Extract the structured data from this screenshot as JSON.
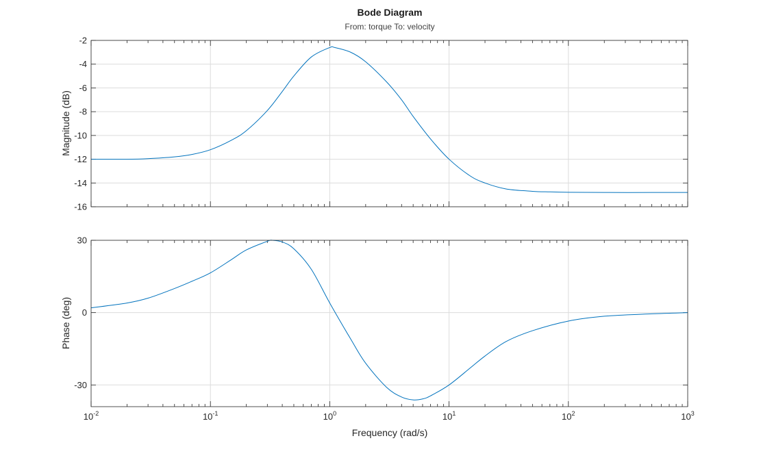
{
  "chart_data": {
    "type": "line",
    "title": "Bode Diagram",
    "subtitle": "From: torque  To: velocity",
    "xlabel": "Frequency (rad/s)",
    "x_scale": "log",
    "xlim": [
      0.01,
      1000
    ],
    "x_ticks": [
      {
        "base": "10",
        "exp": "-2",
        "value": 0.01
      },
      {
        "base": "10",
        "exp": "-1",
        "value": 0.1
      },
      {
        "base": "10",
        "exp": "0",
        "value": 1
      },
      {
        "base": "10",
        "exp": "1",
        "value": 10
      },
      {
        "base": "10",
        "exp": "2",
        "value": 100
      },
      {
        "base": "10",
        "exp": "3",
        "value": 1000
      }
    ],
    "grid": true,
    "line_color": "#0072BD",
    "axes": [
      {
        "name": "magnitude",
        "ylabel": "Magnitude (dB)",
        "ylim": [
          -16,
          -2
        ],
        "y_ticks": [
          -2,
          -4,
          -6,
          -8,
          -10,
          -12,
          -14,
          -16
        ],
        "series": [
          {
            "x": [
              0.01,
              0.02,
              0.03,
              0.05,
              0.07,
              0.1,
              0.15,
              0.2,
              0.3,
              0.4,
              0.5,
              0.7,
              1.0,
              1.1,
              1.5,
              2,
              3,
              4,
              5,
              7,
              10,
              15,
              20,
              30,
              50,
              70,
              100,
              200,
              500,
              1000
            ],
            "y": [
              -12.0,
              -12.0,
              -11.95,
              -11.8,
              -11.6,
              -11.2,
              -10.4,
              -9.6,
              -7.9,
              -6.3,
              -5.0,
              -3.4,
              -2.6,
              -2.6,
              -3.0,
              -3.8,
              -5.5,
              -7.0,
              -8.4,
              -10.3,
              -12.0,
              -13.4,
              -14.0,
              -14.5,
              -14.7,
              -14.75,
              -14.78,
              -14.8,
              -14.8,
              -14.8
            ]
          }
        ]
      },
      {
        "name": "phase",
        "ylabel": "Phase (deg)",
        "ylim": [
          -39,
          30
        ],
        "y_ticks": [
          30,
          0,
          -30
        ],
        "series": [
          {
            "x": [
              0.01,
              0.02,
              0.03,
              0.05,
              0.07,
              0.1,
              0.15,
              0.2,
              0.3,
              0.33,
              0.4,
              0.5,
              0.7,
              1.0,
              1.5,
              2,
              3,
              4,
              5,
              6,
              7,
              10,
              15,
              20,
              30,
              50,
              100,
              200,
              500,
              1000
            ],
            "y": [
              2,
              4,
              6,
              10,
              13,
              16.5,
              22,
              26,
              29.6,
              30,
              29.3,
              26.5,
              18,
              4,
              -11,
              -21,
              -31,
              -35,
              -36.2,
              -35.8,
              -34.5,
              -30,
              -23,
              -18,
              -12,
              -7.5,
              -3.5,
              -1.5,
              -0.5,
              0
            ]
          }
        ]
      }
    ]
  }
}
